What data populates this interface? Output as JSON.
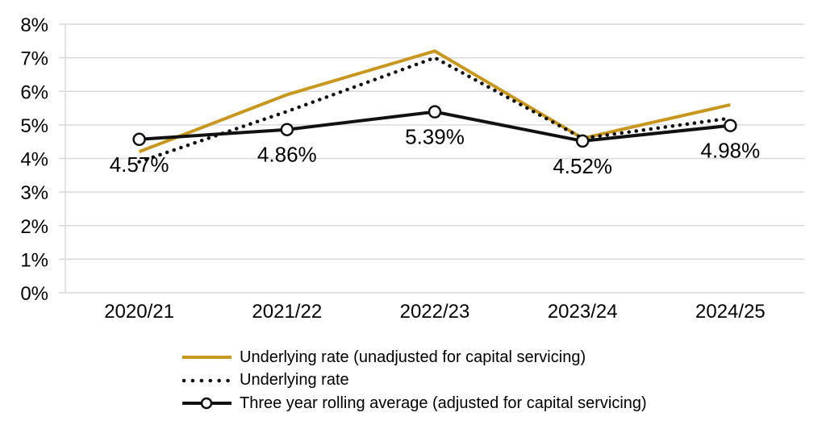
{
  "chart_data": {
    "type": "line",
    "title": "",
    "xlabel": "",
    "ylabel": "",
    "categories": [
      "2020/21",
      "2021/22",
      "2022/23",
      "2023/24",
      "2024/25"
    ],
    "series": [
      {
        "name": "Underlying rate (unadjusted for capital servicing)",
        "values": [
          4.2,
          5.9,
          7.2,
          4.6,
          5.6
        ],
        "color": "#C89720",
        "line_style": "solid",
        "marker": "none"
      },
      {
        "name": "Underlying rate",
        "values": [
          3.9,
          5.4,
          7.0,
          4.6,
          5.2
        ],
        "color": "#111111",
        "line_style": "dotted",
        "marker": "none"
      },
      {
        "name": "Three year rolling average (adjusted for capital servicing)",
        "values": [
          4.57,
          4.86,
          5.39,
          4.52,
          4.98
        ],
        "color": "#111111",
        "line_style": "solid",
        "marker": "open-circle",
        "data_labels": [
          "4.57%",
          "4.86%",
          "5.39%",
          "4.52%",
          "4.98%"
        ]
      }
    ],
    "ylim": [
      0,
      8
    ],
    "ytick_labels": [
      "0%",
      "1%",
      "2%",
      "3%",
      "4%",
      "5%",
      "6%",
      "7%",
      "8%"
    ],
    "grid": "horizontal",
    "legend_position": "bottom-left"
  },
  "colors": {
    "gridline": "#D9D9D9",
    "axis_line": "#D9D9D9",
    "text": "#000000",
    "background": "#FFFFFF"
  }
}
